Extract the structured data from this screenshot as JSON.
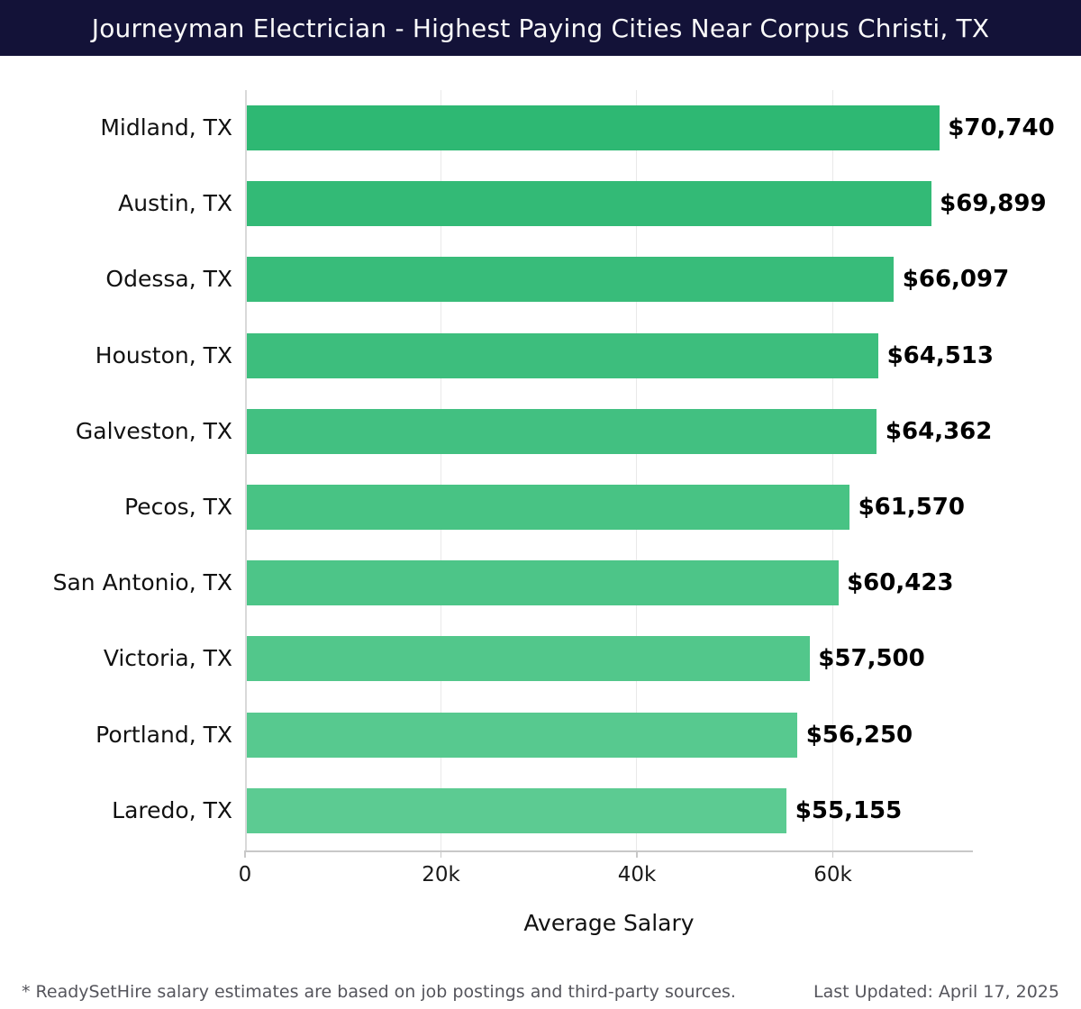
{
  "colors": {
    "header_bg": "#131238",
    "header_text": "#fafafa",
    "grid_line": "#e9e9e9",
    "axis_line": "#c8c8c8"
  },
  "chart_data": {
    "type": "bar",
    "orientation": "horizontal",
    "title": "Journeyman Electrician - Highest Paying Cities Near Corpus Christi, TX",
    "xlabel": "Average Salary",
    "ylabel": "",
    "xlim": [
      0,
      74300
    ],
    "grid": true,
    "categories": [
      "Midland, TX",
      "Austin, TX",
      "Odessa, TX",
      "Houston, TX",
      "Galveston, TX",
      "Pecos, TX",
      "San Antonio, TX",
      "Victoria, TX",
      "Portland, TX",
      "Laredo, TX"
    ],
    "values": [
      70740,
      69899,
      66097,
      64513,
      64362,
      61570,
      60423,
      57500,
      56250,
      55155
    ],
    "value_labels": [
      "$70,740",
      "$69,899",
      "$66,097",
      "$64,513",
      "$64,362",
      "$61,570",
      "$60,423",
      "$57,500",
      "$56,250",
      "$55,155"
    ],
    "bar_colors": [
      "#2eb873",
      "#33ba76",
      "#38bc7a",
      "#3dbe7d",
      "#42c081",
      "#48c384",
      "#4dc588",
      "#52c78b",
      "#57c98f",
      "#5ccb92"
    ],
    "x_ticks": [
      {
        "value": 0,
        "label": "0"
      },
      {
        "value": 20000,
        "label": "20k"
      },
      {
        "value": 40000,
        "label": "40k"
      },
      {
        "value": 60000,
        "label": "60k"
      }
    ]
  },
  "footer": {
    "disclaimer": "* ReadySetHire salary estimates are based on job postings and third-party sources.",
    "last_updated": "Last Updated: April 17, 2025"
  }
}
